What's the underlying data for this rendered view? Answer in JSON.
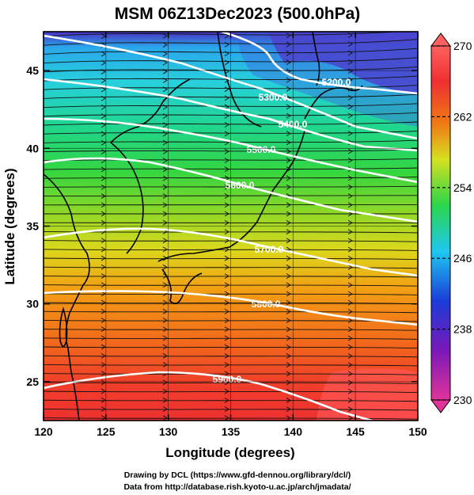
{
  "title": "MSM 06Z13Dec2023 (500.0hPa)",
  "axes": {
    "xlabel": "Longitude (degrees)",
    "ylabel": "Latitude  (degrees)",
    "xticks": [
      "120",
      "125",
      "130",
      "135",
      "140",
      "145",
      "150"
    ],
    "yticks": [
      "25",
      "30",
      "35",
      "40",
      "45"
    ],
    "xlim": [
      120,
      150
    ],
    "ylim": [
      22.5,
      47.5
    ]
  },
  "colorbar": {
    "min": 230,
    "max": 270,
    "labels": [
      "270",
      "262",
      "254",
      "246",
      "238",
      "230"
    ],
    "colors": [
      "#e0349a",
      "#7a18b8",
      "#1a3cd8",
      "#1ec8f0",
      "#2ad64a",
      "#d6e020",
      "#f07a14",
      "#ee3030",
      "#ff6060"
    ]
  },
  "contours": [
    {
      "label": "5200.0"
    },
    {
      "label": "5300.0"
    },
    {
      "label": "5400.0"
    },
    {
      "label": "5500.0"
    },
    {
      "label": "5600.0"
    },
    {
      "label": "5700.0"
    },
    {
      "label": "5800.0"
    },
    {
      "label": "5900.0"
    }
  ],
  "credits": {
    "line1": "Drawing by DCL (https://www.gfd-dennou.org/library/dcl/)",
    "line2": "Data from http://database.rish.kyoto-u.ac.jp/arch/jmadata/"
  }
}
